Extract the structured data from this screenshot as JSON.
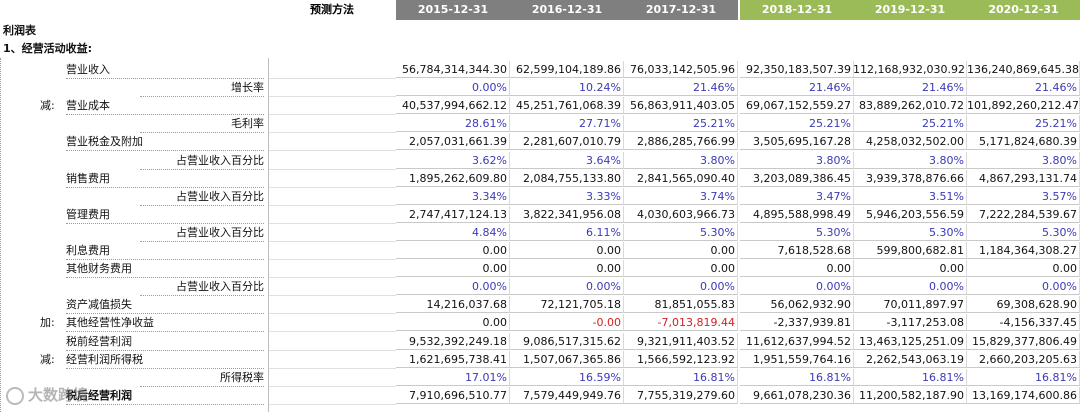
{
  "header": {
    "method_label": "预测方法",
    "years": [
      {
        "label": "2015-12-31",
        "kind": "hist"
      },
      {
        "label": "2016-12-31",
        "kind": "hist"
      },
      {
        "label": "2017-12-31",
        "kind": "hist"
      },
      {
        "label": "2018-12-31",
        "kind": "fore"
      },
      {
        "label": "2019-12-31",
        "kind": "fore"
      },
      {
        "label": "2020-12-31",
        "kind": "fore"
      }
    ]
  },
  "sheet_title": "利润表",
  "section_title": "1、经营活动收益:",
  "rows": [
    {
      "prefix": "",
      "label": "营业收入",
      "align": "left",
      "kind": "num",
      "values": [
        "56,784,314,344.30",
        "62,599,104,189.86",
        "76,033,142,505.96",
        "92,350,183,507.39",
        "112,168,932,030.92",
        "136,240,869,645.38"
      ]
    },
    {
      "prefix": "",
      "label": "增长率",
      "align": "right",
      "kind": "pct",
      "values": [
        "0.00%",
        "10.24%",
        "21.46%",
        "21.46%",
        "21.46%",
        "21.46%"
      ]
    },
    {
      "prefix": "减:",
      "label": "营业成本",
      "align": "left",
      "kind": "num",
      "values": [
        "40,537,994,662.12",
        "45,251,761,068.39",
        "56,863,911,403.05",
        "69,067,152,559.27",
        "83,889,262,010.72",
        "101,892,260,212.47"
      ]
    },
    {
      "prefix": "",
      "label": "毛利率",
      "align": "right",
      "kind": "pct",
      "values": [
        "28.61%",
        "27.71%",
        "25.21%",
        "25.21%",
        "25.21%",
        "25.21%"
      ]
    },
    {
      "prefix": "",
      "label": "营业税金及附加",
      "align": "left",
      "kind": "num",
      "values": [
        "2,057,031,661.39",
        "2,281,607,010.79",
        "2,886,285,766.99",
        "3,505,695,167.28",
        "4,258,032,502.00",
        "5,171,824,680.39"
      ]
    },
    {
      "prefix": "",
      "label": "占营业收入百分比",
      "align": "right",
      "kind": "pct",
      "values": [
        "3.62%",
        "3.64%",
        "3.80%",
        "3.80%",
        "3.80%",
        "3.80%"
      ]
    },
    {
      "prefix": "",
      "label": "销售费用",
      "align": "left",
      "kind": "num",
      "values": [
        "1,895,262,609.80",
        "2,084,755,133.80",
        "2,841,565,090.40",
        "3,203,089,386.45",
        "3,939,378,876.66",
        "4,867,293,131.74"
      ]
    },
    {
      "prefix": "",
      "label": "占营业收入百分比",
      "align": "right",
      "kind": "pct",
      "values": [
        "3.34%",
        "3.33%",
        "3.74%",
        "3.47%",
        "3.51%",
        "3.57%"
      ]
    },
    {
      "prefix": "",
      "label": "管理费用",
      "align": "left",
      "kind": "num",
      "values": [
        "2,747,417,124.13",
        "3,822,341,956.08",
        "4,030,603,966.73",
        "4,895,588,998.49",
        "5,946,203,556.59",
        "7,222,284,539.67"
      ]
    },
    {
      "prefix": "",
      "label": "占营业收入百分比",
      "align": "right",
      "kind": "pct",
      "values": [
        "4.84%",
        "6.11%",
        "5.30%",
        "5.30%",
        "5.30%",
        "5.30%"
      ]
    },
    {
      "prefix": "",
      "label": "利息费用",
      "align": "left",
      "kind": "num",
      "values": [
        "0.00",
        "0.00",
        "0.00",
        "7,618,528.68",
        "599,800,682.81",
        "1,184,364,308.27"
      ]
    },
    {
      "prefix": "",
      "label": "其他财务费用",
      "align": "left",
      "kind": "num",
      "values": [
        "0.00",
        "0.00",
        "0.00",
        "0.00",
        "0.00",
        "0.00"
      ]
    },
    {
      "prefix": "",
      "label": "占营业收入百分比",
      "align": "right",
      "kind": "pct",
      "values": [
        "0.00%",
        "0.00%",
        "0.00%",
        "0.00%",
        "0.00%",
        "0.00%"
      ]
    },
    {
      "prefix": "",
      "label": "资产减值损失",
      "align": "left",
      "kind": "num",
      "values": [
        "14,216,037.68",
        "72,121,705.18",
        "81,851,055.83",
        "56,062,932.90",
        "70,011,897.97",
        "69,308,628.90"
      ]
    },
    {
      "prefix": "加:",
      "label": "其他经营性净收益",
      "align": "left",
      "kind": "num",
      "values": [
        "0.00",
        "-0.00",
        "-7,013,819.44",
        "-2,337,939.81",
        "-3,117,253.08",
        "-4,156,337.45"
      ],
      "negative": [
        false,
        true,
        true,
        false,
        false,
        false
      ]
    },
    {
      "prefix": "",
      "label": "税前经营利润",
      "align": "left",
      "kind": "num",
      "values": [
        "9,532,392,249.18",
        "9,086,517,315.62",
        "9,321,911,403.52",
        "11,612,637,994.52",
        "13,463,125,251.09",
        "15,829,377,806.49"
      ]
    },
    {
      "prefix": "减:",
      "label": "经营利润所得税",
      "align": "left",
      "kind": "num",
      "values": [
        "1,621,695,738.41",
        "1,507,067,365.86",
        "1,566,592,123.92",
        "1,951,559,764.16",
        "2,262,543,063.19",
        "2,660,203,205.63"
      ]
    },
    {
      "prefix": "",
      "label": "所得税率",
      "align": "right",
      "kind": "pct",
      "values": [
        "17.01%",
        "16.59%",
        "16.81%",
        "16.81%",
        "16.81%",
        "16.81%"
      ]
    },
    {
      "prefix": "",
      "label": "税后经营利润",
      "align": "left",
      "kind": "num",
      "bold": true,
      "values": [
        "7,910,696,510.77",
        "7,579,449,949.76",
        "7,755,319,279.60",
        "9,661,078,230.36",
        "11,200,582,187.90",
        "13,169,174,600.86"
      ]
    }
  ],
  "watermark": "大数跨境"
}
